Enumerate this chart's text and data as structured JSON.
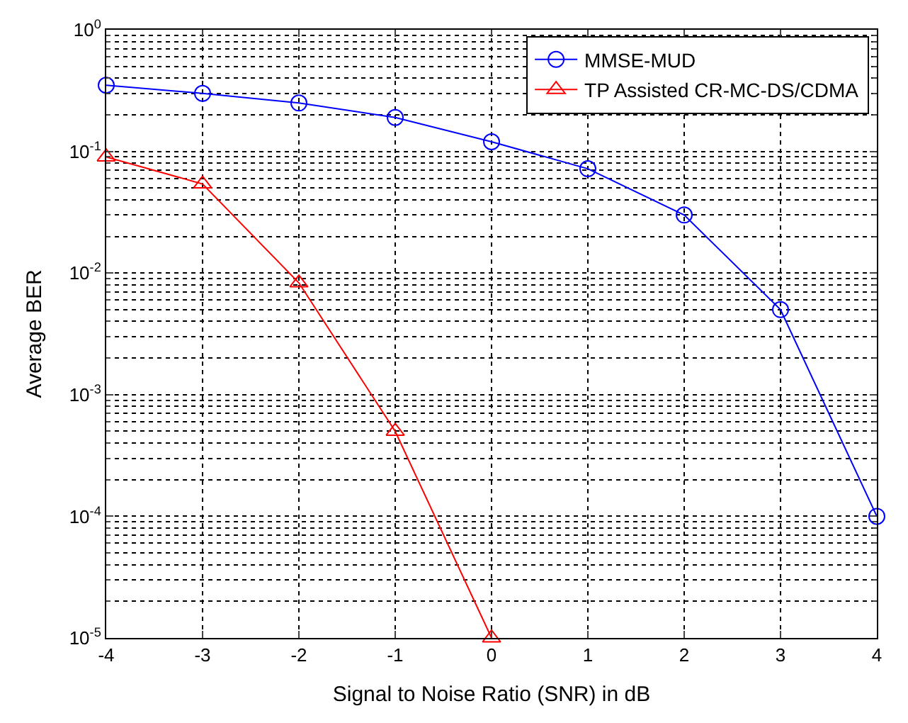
{
  "chart_data": {
    "type": "line",
    "xlabel": "Signal to Noise Ratio (SNR) in dB",
    "ylabel": "Average BER",
    "x": [
      -4,
      -3,
      -2,
      -1,
      0,
      1,
      2,
      3,
      4
    ],
    "series": [
      {
        "name": "MMSE-MUD",
        "color": "#0000ff",
        "marker": "circle",
        "values": [
          0.35,
          0.3,
          0.25,
          0.19,
          0.12,
          0.072,
          0.03,
          0.005,
          0.0001
        ]
      },
      {
        "name": "TP Assisted CR-MC-DS/CDMA",
        "color": "#ff0000",
        "marker": "triangle",
        "values": [
          0.09,
          0.054,
          0.0083,
          0.0005,
          1e-05,
          null,
          null,
          null,
          null
        ]
      }
    ],
    "log": "y",
    "xlim": [
      -4,
      4
    ],
    "xticks": [
      -4,
      -3,
      -2,
      -1,
      0,
      1,
      2,
      3,
      4
    ],
    "ylim": [
      1e-05,
      1
    ],
    "yticks": [
      {
        "value": 1e-05,
        "label": "10$^{-5}$"
      },
      {
        "value": 0.0001,
        "label": "10$^{-4}$"
      },
      {
        "value": 0.001,
        "label": "10$^{-3}$"
      },
      {
        "value": 0.01,
        "label": "10$^{-2}$"
      },
      {
        "value": 0.1,
        "label": "10$^{-1}$"
      },
      {
        "value": 1,
        "label": "10$^{0}$"
      }
    ],
    "grid": true,
    "legend": "top right",
    "line_style": "solid"
  }
}
